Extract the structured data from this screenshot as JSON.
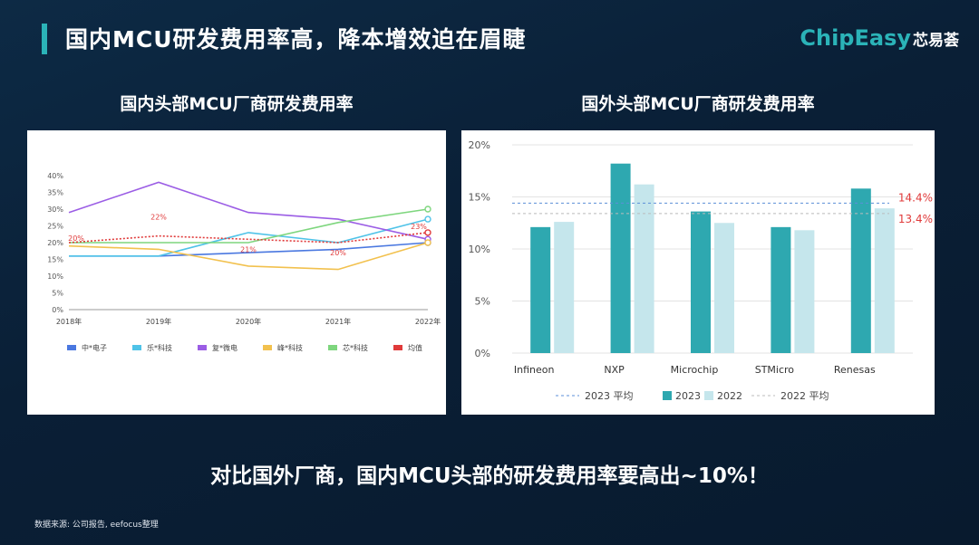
{
  "header": {
    "title": "国内MCU研发费用率高，降本增效迫在眉睫"
  },
  "logo": {
    "brand": "ChipEasy",
    "cn": "芯易荟"
  },
  "bottom_text": "对比国外厂商，国内MCU头部的研发费用率要高出~10%！",
  "source": "数据来源: 公司报告, eefocus整理",
  "chart_data": [
    {
      "type": "line",
      "title": "国内头部MCU厂商研发费用率",
      "x": [
        "2018年",
        "2019年",
        "2020年",
        "2021年",
        "2022年"
      ],
      "ylim": [
        0,
        40
      ],
      "yticks": [
        "0%",
        "5%",
        "10%",
        "15%",
        "20%",
        "25%",
        "30%",
        "35%",
        "40%"
      ],
      "grid": false,
      "legend_position": "bottom",
      "series": [
        {
          "name": "中*电子",
          "color": "#4a78e0",
          "values": [
            16,
            16,
            17,
            18,
            20
          ]
        },
        {
          "name": "乐*科技",
          "color": "#4fc3e8",
          "values": [
            16,
            16,
            23,
            20,
            27
          ]
        },
        {
          "name": "复*微电",
          "color": "#9b5de5",
          "values": [
            29,
            38,
            29,
            27,
            21
          ]
        },
        {
          "name": "峰*科技",
          "color": "#f2c14e",
          "values": [
            19,
            18,
            13,
            12,
            20
          ]
        },
        {
          "name": "芯*科技",
          "color": "#7ed67e",
          "values": [
            20,
            20,
            20,
            26,
            30
          ]
        },
        {
          "name": "均值",
          "color": "#e03a3a",
          "dashed": true,
          "values": [
            20,
            22,
            21,
            20,
            23
          ]
        }
      ],
      "annotations": [
        {
          "text": "20%",
          "x_index": 0,
          "y": 20
        },
        {
          "text": "22%",
          "x_index": 1,
          "y": 22
        },
        {
          "text": "21%",
          "x_index": 2,
          "y": 21
        },
        {
          "text": "20%",
          "x_index": 3,
          "y": 20
        },
        {
          "text": "23%",
          "x_index": 4,
          "y": 23
        }
      ]
    },
    {
      "type": "bar",
      "title": "国外头部MCU厂商研发费用率",
      "categories": [
        "Infineon",
        "NXP",
        "Microchip",
        "STMicro",
        "Renesas"
      ],
      "ylim": [
        0,
        20
      ],
      "yticks": [
        "0%",
        "5%",
        "10%",
        "15%",
        "20%"
      ],
      "legend_position": "bottom",
      "series": [
        {
          "name": "2023",
          "color": "#2ea8b0",
          "values": [
            12.1,
            18.2,
            13.6,
            12.1,
            15.8
          ]
        },
        {
          "name": "2022",
          "color": "#c5e6ec",
          "values": [
            12.6,
            16.2,
            12.5,
            11.8,
            13.9
          ]
        }
      ],
      "reference_lines": [
        {
          "name": "2023 平均",
          "value": 14.4,
          "label": "14.4%",
          "color": "#5b8fd8"
        },
        {
          "name": "2022 平均",
          "value": 13.4,
          "label": "13.4%",
          "color": "#bbbbbb"
        }
      ]
    }
  ]
}
